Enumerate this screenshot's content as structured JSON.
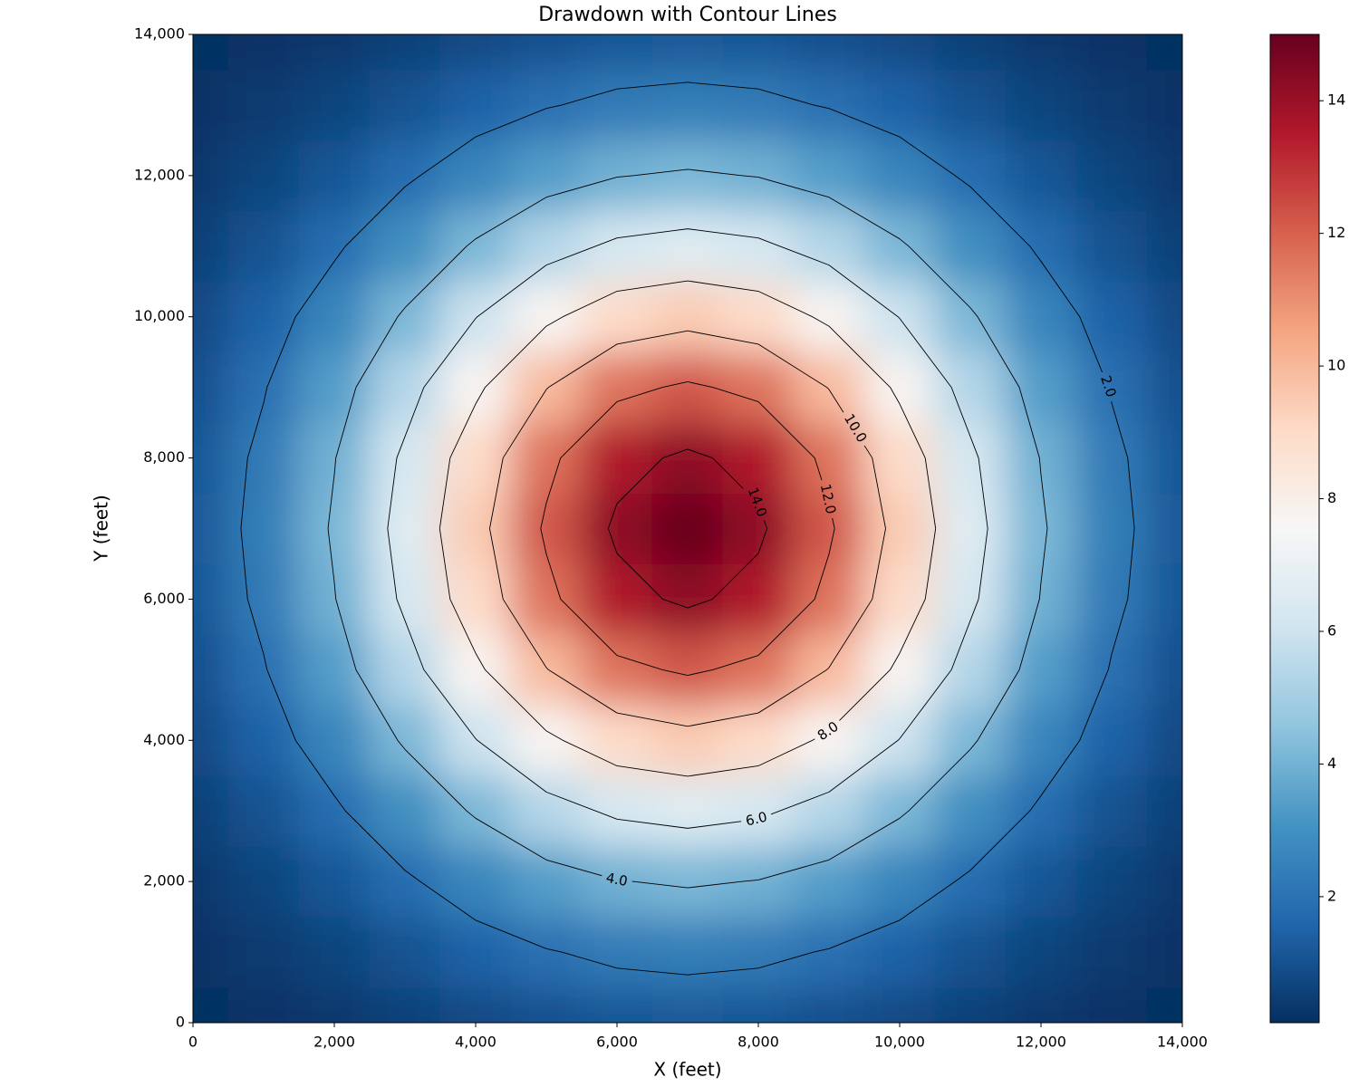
{
  "chart_data": {
    "type": "contour",
    "title": "Drawdown with Contour Lines",
    "x_label": "X (feet)",
    "y_label": "Y (feet)",
    "x": [
      0,
      1000,
      2000,
      3000,
      4000,
      5000,
      6000,
      7000,
      8000,
      9000,
      10000,
      11000,
      12000,
      13000,
      14000
    ],
    "y": [
      0,
      1000,
      2000,
      3000,
      4000,
      5000,
      6000,
      7000,
      8000,
      9000,
      10000,
      11000,
      12000,
      13000,
      14000
    ],
    "z": [
      [
        0.1,
        0.19,
        0.34,
        0.54,
        0.77,
        0.99,
        1.15,
        1.22,
        1.15,
        0.99,
        0.77,
        0.54,
        0.34,
        0.19,
        0.1
      ],
      [
        0.19,
        0.37,
        0.66,
        1.04,
        1.49,
        1.93,
        2.25,
        2.37,
        2.25,
        1.93,
        1.49,
        1.04,
        0.66,
        0.37,
        0.19
      ],
      [
        0.34,
        0.66,
        1.15,
        1.83,
        2.62,
        3.39,
        3.95,
        4.16,
        3.95,
        3.39,
        2.62,
        1.83,
        1.15,
        0.66,
        0.34
      ],
      [
        0.54,
        1.04,
        1.83,
        2.91,
        4.16,
        5.38,
        6.27,
        6.6,
        6.27,
        5.38,
        4.16,
        2.91,
        1.83,
        1.04,
        0.54
      ],
      [
        0.77,
        1.49,
        2.62,
        4.16,
        5.96,
        7.7,
        8.98,
        9.45,
        8.98,
        7.7,
        5.96,
        4.16,
        2.62,
        1.49,
        0.77
      ],
      [
        0.99,
        1.93,
        3.39,
        5.38,
        7.7,
        9.95,
        11.61,
        12.22,
        11.61,
        9.95,
        7.7,
        5.38,
        3.39,
        1.93,
        0.99
      ],
      [
        1.15,
        2.25,
        3.95,
        6.27,
        8.98,
        11.61,
        13.54,
        14.25,
        13.54,
        11.61,
        8.98,
        6.27,
        3.95,
        2.25,
        1.15
      ],
      [
        1.22,
        2.37,
        4.16,
        6.6,
        9.45,
        12.22,
        14.25,
        15.0,
        14.25,
        12.22,
        9.45,
        6.6,
        4.16,
        2.37,
        1.22
      ],
      [
        1.15,
        2.25,
        3.95,
        6.27,
        8.98,
        11.61,
        13.54,
        14.25,
        13.54,
        11.61,
        8.98,
        6.27,
        3.95,
        2.25,
        1.15
      ],
      [
        0.99,
        1.93,
        3.39,
        5.38,
        7.7,
        9.95,
        11.61,
        12.22,
        11.61,
        9.95,
        7.7,
        5.38,
        3.39,
        1.93,
        0.99
      ],
      [
        0.77,
        1.49,
        2.62,
        4.16,
        5.96,
        7.7,
        8.98,
        9.45,
        8.98,
        7.7,
        5.96,
        4.16,
        2.62,
        1.49,
        0.77
      ],
      [
        0.54,
        1.04,
        1.83,
        2.91,
        4.16,
        5.38,
        6.27,
        6.6,
        6.27,
        5.38,
        4.16,
        2.91,
        1.83,
        1.04,
        0.54
      ],
      [
        0.34,
        0.66,
        1.15,
        1.83,
        2.62,
        3.39,
        3.95,
        4.16,
        3.95,
        3.39,
        2.62,
        1.83,
        1.15,
        0.66,
        0.34
      ],
      [
        0.19,
        0.37,
        0.66,
        1.04,
        1.49,
        1.93,
        2.25,
        2.37,
        2.25,
        1.93,
        1.49,
        1.04,
        0.66,
        0.37,
        0.19
      ],
      [
        0.1,
        0.19,
        0.34,
        0.54,
        0.77,
        0.99,
        1.15,
        1.22,
        1.15,
        0.99,
        0.77,
        0.54,
        0.34,
        0.19,
        0.1
      ]
    ],
    "contour_levels": [
      {
        "value": 2,
        "label": "2.0"
      },
      {
        "value": 4,
        "label": "4.0"
      },
      {
        "value": 6,
        "label": "6.0"
      },
      {
        "value": 8,
        "label": "8.0"
      },
      {
        "value": 10,
        "label": "10.0"
      },
      {
        "value": 12,
        "label": "12.0"
      },
      {
        "value": 14,
        "label": "14.0"
      }
    ],
    "contour_color": "#000000",
    "colormap": [
      "#053061",
      "#2166ac",
      "#4393c3",
      "#92c5de",
      "#d1e5f0",
      "#f7f7f7",
      "#fddbc7",
      "#f4a582",
      "#d6604d",
      "#b2182b",
      "#67001f"
    ],
    "clim": [
      0.1,
      15.0
    ],
    "cticks": [
      2,
      4,
      6,
      8,
      10,
      12,
      14
    ],
    "xlim": [
      0,
      14000
    ],
    "ylim": [
      0,
      14000
    ],
    "xticks": [
      0,
      {
        "value": 2000,
        "label": "2,000"
      },
      {
        "value": 4000,
        "label": "4,000"
      },
      {
        "value": 6000,
        "label": "6,000"
      },
      {
        "value": 8000,
        "label": "8,000"
      },
      {
        "value": 10000,
        "label": "10,000"
      },
      {
        "value": 12000,
        "label": "12,000"
      },
      {
        "value": 14000,
        "label": "14,000"
      }
    ],
    "yticks": [
      0,
      {
        "value": 2000,
        "label": "2,000"
      },
      {
        "value": 4000,
        "label": "4,000"
      },
      {
        "value": 6000,
        "label": "6,000"
      },
      {
        "value": 8000,
        "label": "8,000"
      },
      {
        "value": 10000,
        "label": "10,000"
      },
      {
        "value": 12000,
        "label": "12,000"
      },
      {
        "value": 14000,
        "label": "14,000"
      }
    ]
  }
}
